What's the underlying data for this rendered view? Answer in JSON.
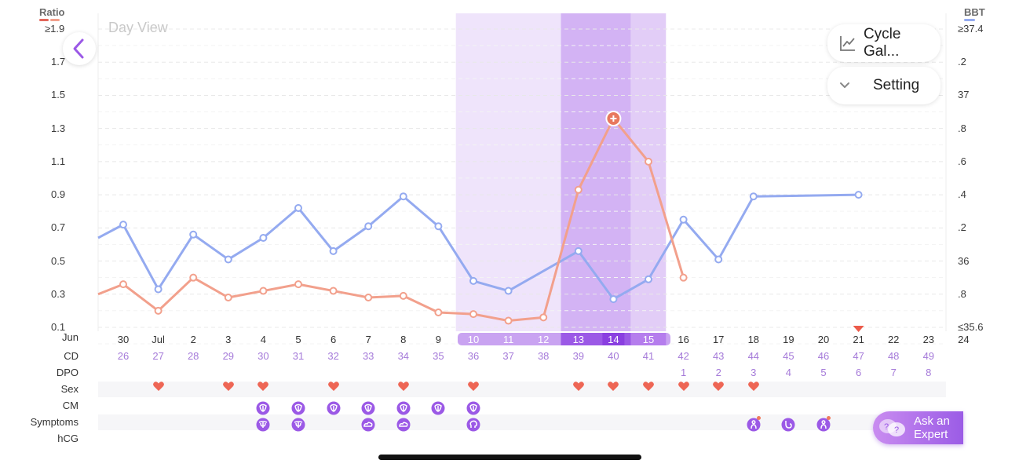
{
  "view": {
    "title": "Day View",
    "back_icon": "chevron-left-icon",
    "buttons": {
      "cycle_gallery": {
        "label": "Cycle Gal...",
        "icon": "line-chart-icon"
      },
      "setting": {
        "label": "Setting",
        "icon": "chevron-down-icon"
      }
    },
    "ask_expert": {
      "line1": "Ask an",
      "line2": "Expert",
      "icon": "chat-bubbles-icon"
    }
  },
  "axes": {
    "left_title": "Ratio",
    "right_title": "BBT",
    "left_ticks": [
      "≥1.9",
      "1.7",
      "1.5",
      "1.3",
      "1.1",
      "0.9",
      "0.7",
      "0.5",
      "0.3",
      "0.1"
    ],
    "right_ticks": [
      "≥37.4",
      ".2",
      "37",
      ".8",
      ".6",
      ".4",
      ".2",
      "36",
      ".8",
      "≤35.6"
    ]
  },
  "row_labels": {
    "date_month": "Jun",
    "cd": "CD",
    "dpo": "DPO",
    "sex": "Sex",
    "cm": "CM",
    "symptoms": "Symptoms",
    "hcg": "hCG"
  },
  "colors": {
    "bbt_line": "#94aaf0",
    "ratio_line": "#f2a08c",
    "fertile_light": "#efe4fb",
    "fertile_mid": "#e2cdf7",
    "fertile_dark": "#d3b3f4",
    "accent_purple": "#9b59e6",
    "heart": "#ee6655",
    "cd_text": "#a57ad9"
  },
  "days": [
    {
      "date": "30",
      "cd": "26",
      "dpo": "",
      "sex": false,
      "cm": false,
      "sym": ""
    },
    {
      "date": "Jul",
      "cd": "27",
      "dpo": "",
      "sex": true,
      "cm": false,
      "sym": ""
    },
    {
      "date": "2",
      "cd": "28",
      "dpo": "",
      "sex": false,
      "cm": false,
      "sym": ""
    },
    {
      "date": "3",
      "cd": "29",
      "dpo": "",
      "sex": true,
      "cm": false,
      "sym": ""
    },
    {
      "date": "4",
      "cd": "30",
      "dpo": "",
      "sex": true,
      "cm": true,
      "sym": "uterus"
    },
    {
      "date": "5",
      "cd": "31",
      "dpo": "",
      "sex": false,
      "cm": true,
      "sym": "uterus"
    },
    {
      "date": "6",
      "cd": "32",
      "dpo": "",
      "sex": true,
      "cm": true,
      "sym": ""
    },
    {
      "date": "7",
      "cd": "33",
      "dpo": "",
      "sex": false,
      "cm": true,
      "sym": "cloud"
    },
    {
      "date": "8",
      "cd": "34",
      "dpo": "",
      "sex": true,
      "cm": true,
      "sym": "cloud"
    },
    {
      "date": "9",
      "cd": "35",
      "dpo": "",
      "sex": false,
      "cm": true,
      "sym": ""
    },
    {
      "date": "10",
      "cd": "36",
      "dpo": "",
      "sex": true,
      "cm": true,
      "sym": "head"
    },
    {
      "date": "11",
      "cd": "37",
      "dpo": "",
      "sex": false,
      "cm": false,
      "sym": ""
    },
    {
      "date": "12",
      "cd": "38",
      "dpo": "",
      "sex": false,
      "cm": false,
      "sym": ""
    },
    {
      "date": "13",
      "cd": "39",
      "dpo": "",
      "sex": true,
      "cm": false,
      "sym": ""
    },
    {
      "date": "14",
      "cd": "40",
      "dpo": "",
      "sex": true,
      "cm": false,
      "sym": ""
    },
    {
      "date": "15",
      "cd": "41",
      "dpo": "",
      "sex": true,
      "cm": false,
      "sym": ""
    },
    {
      "date": "16",
      "cd": "42",
      "dpo": "1",
      "sex": true,
      "cm": false,
      "sym": ""
    },
    {
      "date": "17",
      "cd": "43",
      "dpo": "2",
      "sex": true,
      "cm": false,
      "sym": ""
    },
    {
      "date": "18",
      "cd": "44",
      "dpo": "3",
      "sex": true,
      "cm": false,
      "sym": "person"
    },
    {
      "date": "19",
      "cd": "45",
      "dpo": "4",
      "sex": false,
      "cm": false,
      "sym": "stomach"
    },
    {
      "date": "20",
      "cd": "46",
      "dpo": "5",
      "sex": false,
      "cm": false,
      "sym": "person"
    },
    {
      "date": "21",
      "cd": "47",
      "dpo": "6",
      "sex": false,
      "cm": false,
      "sym": ""
    },
    {
      "date": "22",
      "cd": "48",
      "dpo": "7",
      "sex": false,
      "cm": false,
      "sym": ""
    },
    {
      "date": "23",
      "cd": "49",
      "dpo": "8",
      "sex": false,
      "cm": false,
      "sym": ""
    },
    {
      "date": "24",
      "cd": "",
      "dpo": "",
      "sex": false,
      "cm": false,
      "sym": ""
    }
  ],
  "chart_data": {
    "type": "line",
    "x": [
      "30",
      "Jul",
      "2",
      "3",
      "4",
      "5",
      "6",
      "7",
      "8",
      "9",
      "10",
      "11",
      "12",
      "13",
      "14",
      "15",
      "16",
      "17",
      "18",
      "19",
      "20",
      "21",
      "22",
      "23",
      "24"
    ],
    "ylim_left": [
      0.1,
      1.9
    ],
    "ylim_right": [
      35.6,
      37.4
    ],
    "series": [
      {
        "axis": "right",
        "color": "#94aaf0",
        "values": [
          36.22,
          35.83,
          36.16,
          36.01,
          36.14,
          36.32,
          36.06,
          36.21,
          36.39,
          36.21,
          35.88,
          35.82,
          null,
          36.06,
          35.77,
          35.89,
          36.25,
          36.01,
          36.39,
          null,
          null,
          36.4,
          null,
          null,
          null
        ],
        "lead_in": 36.14
      },
      {
        "axis": "left",
        "color": "#f2a08c",
        "values": [
          0.36,
          0.2,
          0.4,
          0.28,
          0.32,
          0.36,
          0.32,
          0.28,
          0.29,
          0.19,
          0.18,
          0.14,
          0.16,
          0.93,
          1.36,
          1.1,
          0.4,
          null,
          null,
          null,
          null,
          null,
          null,
          null,
          null
        ],
        "lead_in": 0.3,
        "peak_index": 14
      }
    ],
    "fertile_window": {
      "light": [
        "10",
        "11",
        "12"
      ],
      "dark": [
        "13",
        "14"
      ],
      "mid": [
        "15"
      ]
    },
    "period_marker_day": "21",
    "grid": true
  }
}
